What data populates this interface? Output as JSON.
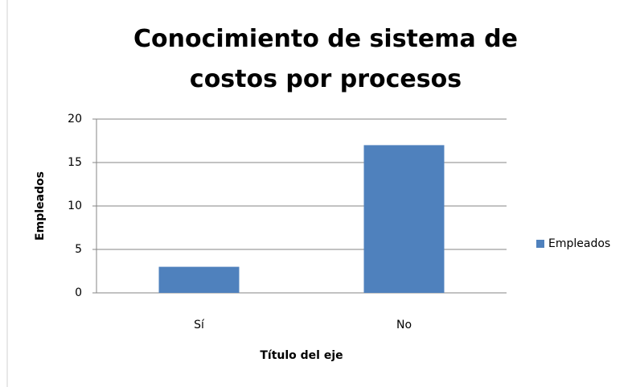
{
  "chart_data": {
    "type": "bar",
    "title": "Conocimiento de sistema de costos por procesos",
    "categories": [
      "Sí",
      "No"
    ],
    "series": [
      {
        "name": "Empleados",
        "color": "#4f81bd",
        "values": [
          3,
          17
        ]
      }
    ],
    "ylim": [
      0,
      20
    ],
    "yticks": [
      0,
      5,
      10,
      15,
      20
    ],
    "grid": true,
    "y_label": "Empleados",
    "x_label": "Título del eje",
    "legend": "right"
  }
}
